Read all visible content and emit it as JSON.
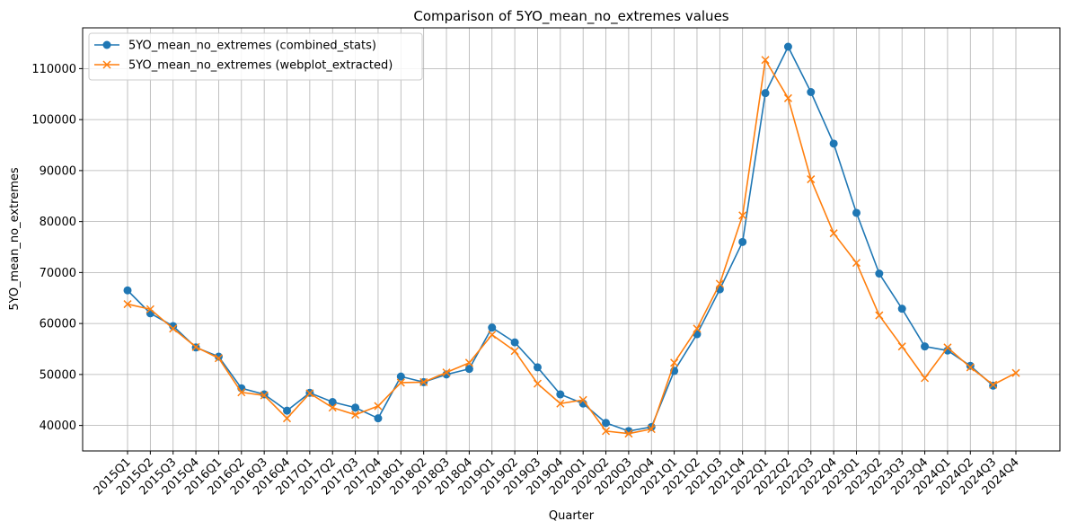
{
  "chart_data": {
    "type": "line",
    "title": "Comparison of 5YO_mean_no_extremes values",
    "xlabel": "Quarter",
    "ylabel": "5YO_mean_no_extremes",
    "ylim": [
      35000,
      118000
    ],
    "yticks": [
      40000,
      50000,
      60000,
      70000,
      80000,
      90000,
      100000,
      110000
    ],
    "grid": true,
    "legend_position": "top-left",
    "categories": [
      "2015Q1",
      "2015Q2",
      "2015Q3",
      "2015Q4",
      "2016Q1",
      "2016Q2",
      "2016Q3",
      "2016Q4",
      "2017Q1",
      "2017Q2",
      "2017Q3",
      "2017Q4",
      "2018Q1",
      "2018Q2",
      "2018Q3",
      "2018Q4",
      "2019Q1",
      "2019Q2",
      "2019Q3",
      "2019Q4",
      "2020Q1",
      "2020Q2",
      "2020Q3",
      "2020Q4",
      "2021Q1",
      "2021Q2",
      "2021Q3",
      "2021Q4",
      "2022Q1",
      "2022Q2",
      "2022Q3",
      "2022Q4",
      "2023Q1",
      "2023Q2",
      "2023Q3",
      "2023Q4",
      "2024Q1",
      "2024Q2",
      "2024Q3",
      "2024Q4"
    ],
    "series": [
      {
        "name": "5YO_mean_no_extremes (combined_stats)",
        "color": "#1f77b4",
        "marker": "circle",
        "values": [
          66500,
          62000,
          59500,
          55300,
          53500,
          47300,
          46100,
          42900,
          46400,
          44600,
          43500,
          41400,
          49600,
          48500,
          50000,
          51100,
          59200,
          56300,
          51400,
          46100,
          44300,
          40500,
          38900,
          39700,
          50700,
          57900,
          66700,
          76000,
          105200,
          114300,
          105400,
          95300,
          81700,
          69800,
          62900,
          55500,
          54700,
          51700,
          47800,
          null
        ]
      },
      {
        "name": "5YO_mean_no_extremes (webplot_extracted)",
        "color": "#ff7f0e",
        "marker": "x",
        "values": [
          63800,
          62800,
          59000,
          55400,
          53200,
          46500,
          45900,
          41400,
          46300,
          43500,
          42100,
          43800,
          48400,
          48500,
          50400,
          52300,
          57800,
          54600,
          48200,
          44300,
          45000,
          38900,
          38400,
          39300,
          52300,
          59000,
          67800,
          81200,
          111700,
          104200,
          88300,
          77700,
          71900,
          61600,
          55500,
          49300,
          55300,
          51400,
          48000,
          50300
        ]
      }
    ]
  }
}
